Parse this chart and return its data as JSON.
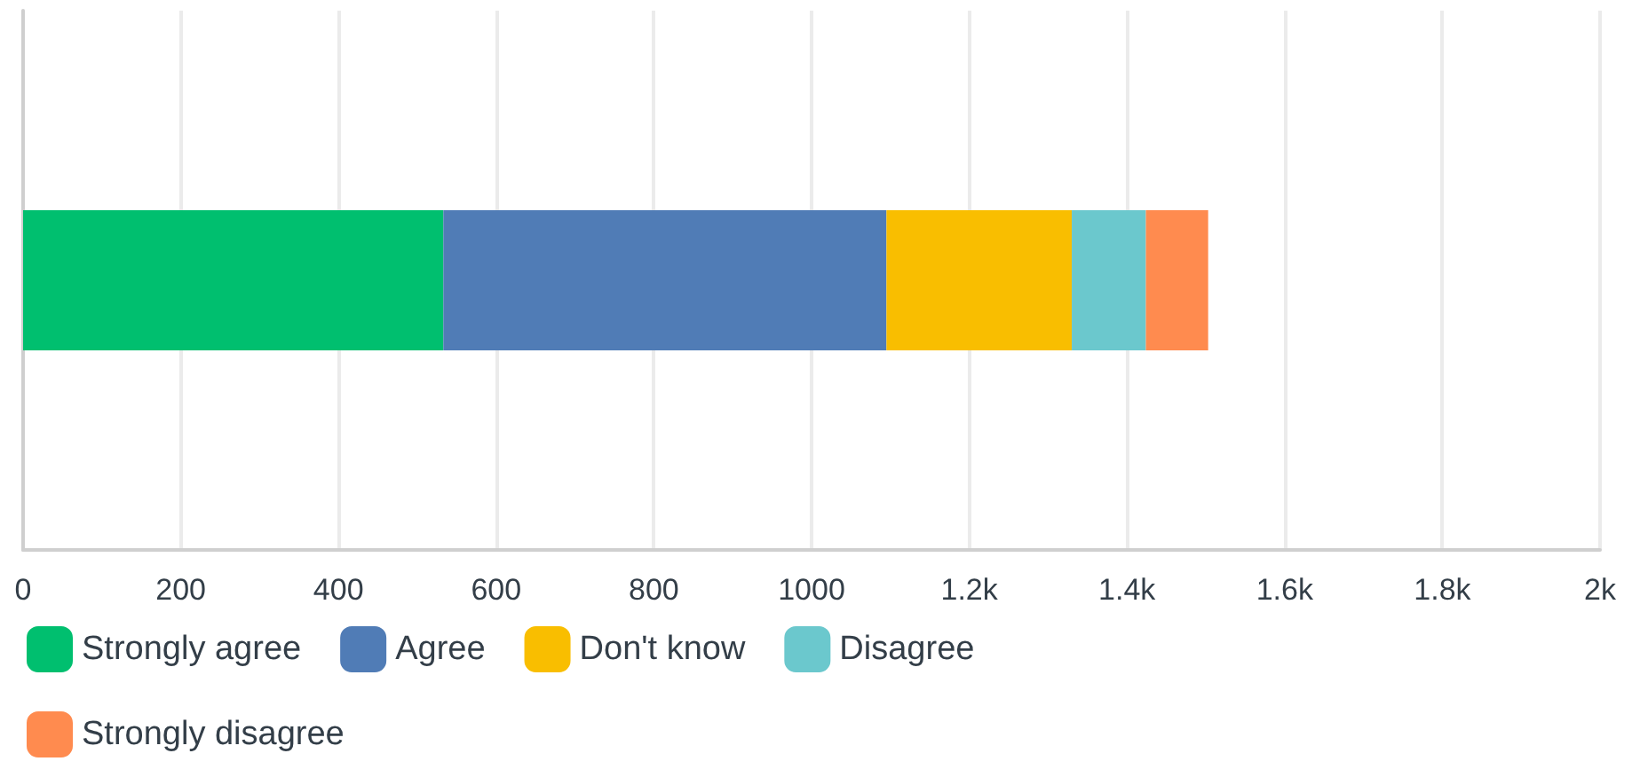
{
  "chart_data": {
    "type": "bar",
    "orientation": "horizontal",
    "stacked": true,
    "categories": [
      null
    ],
    "series": [
      {
        "name": "Strongly agree",
        "color": "#00bf6f",
        "values": [
          533
        ]
      },
      {
        "name": "Agree",
        "color": "#507cb6",
        "values": [
          562
        ]
      },
      {
        "name": "Don't know",
        "color": "#f9be00",
        "values": [
          235
        ]
      },
      {
        "name": "Disagree",
        "color": "#6bc8cd",
        "values": [
          94
        ]
      },
      {
        "name": "Strongly disagree",
        "color": "#ff8b4f",
        "values": [
          79
        ]
      }
    ],
    "xlim": [
      0,
      2000
    ],
    "xticks": [
      0,
      200,
      400,
      600,
      800,
      1000,
      {
        "value": 1200,
        "label": "1.2k"
      },
      {
        "value": 1400,
        "label": "1.4k"
      },
      {
        "value": 1600,
        "label": "1.6k"
      },
      {
        "value": 1800,
        "label": "1.8k"
      },
      {
        "value": 2000,
        "label": "2k"
      }
    ],
    "grid": "x",
    "legend": "bottom left"
  }
}
